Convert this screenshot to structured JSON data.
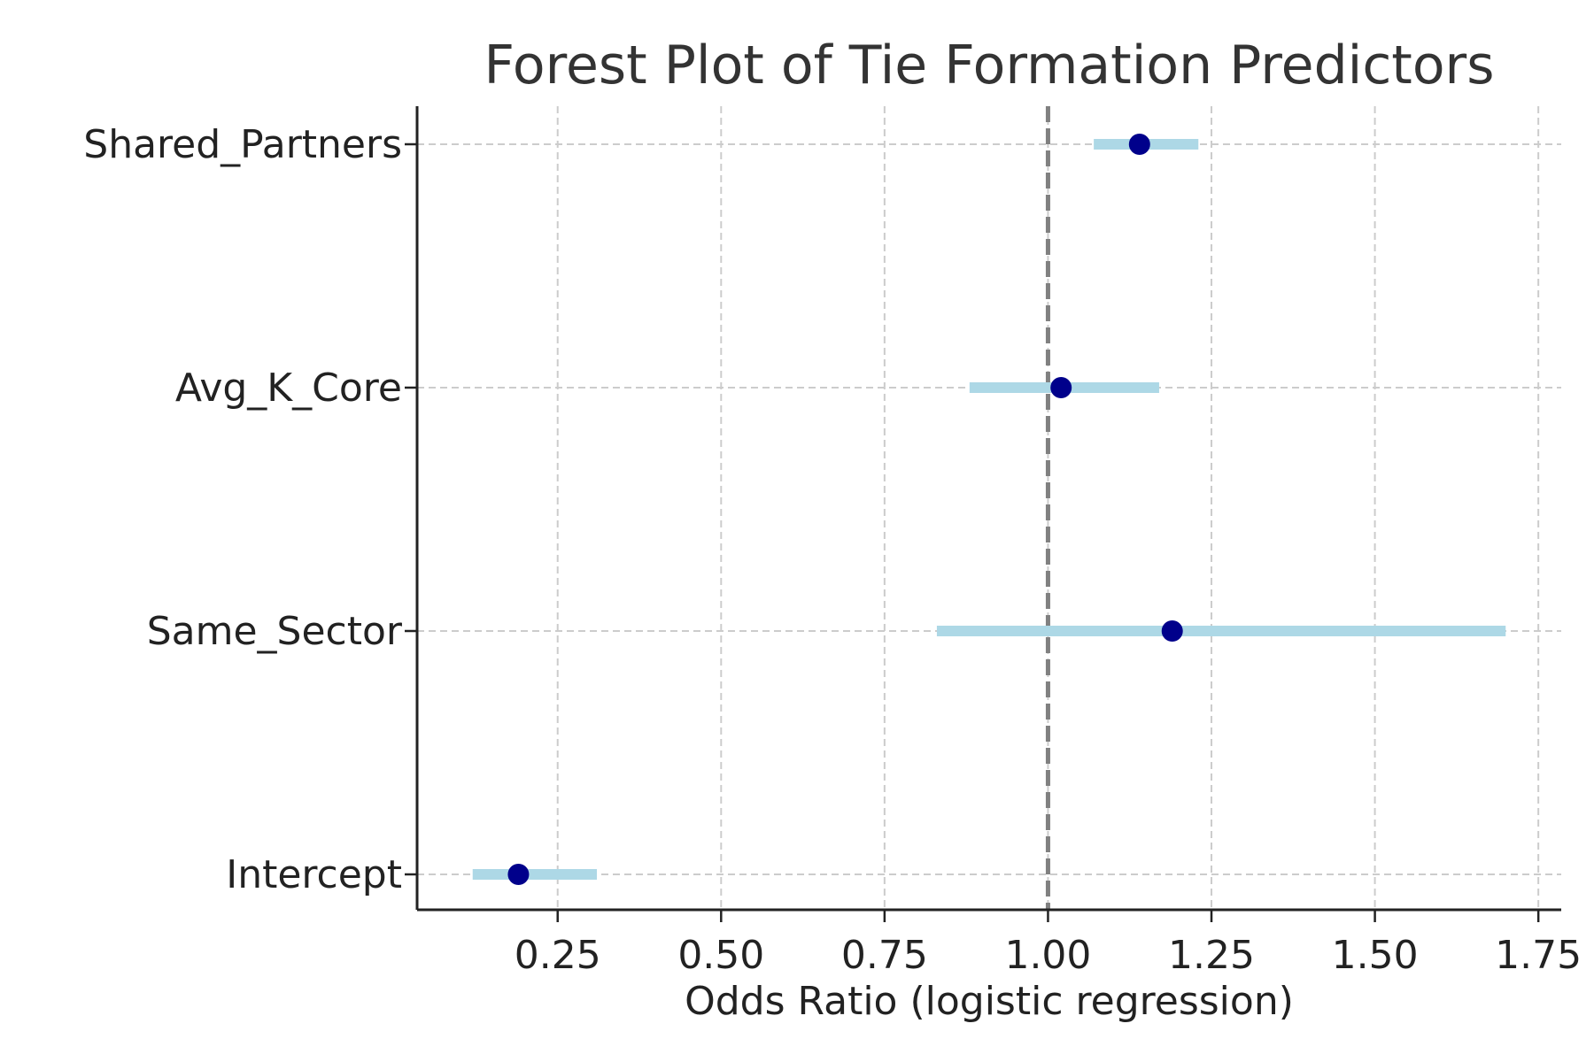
{
  "chart_data": {
    "type": "scatter",
    "subtype": "forest-plot",
    "title": "Forest Plot of Tie Formation Predictors",
    "xlabel": "Odds Ratio (logistic regression)",
    "ylabel": "",
    "xlim": [
      0.035,
      1.785
    ],
    "xticks": [
      0.25,
      0.5,
      0.75,
      1.0,
      1.25,
      1.5,
      1.75
    ],
    "xtick_labels": [
      "0.25",
      "0.50",
      "0.75",
      "1.00",
      "1.25",
      "1.50",
      "1.75"
    ],
    "reference_line": 1.0,
    "grid": true,
    "rows": [
      {
        "label": "Shared_Partners",
        "odds_ratio": 1.14,
        "ci_low": 1.07,
        "ci_high": 1.23
      },
      {
        "label": "Avg_K_Core",
        "odds_ratio": 1.02,
        "ci_low": 0.88,
        "ci_high": 1.17
      },
      {
        "label": "Same_Sector",
        "odds_ratio": 1.19,
        "ci_low": 0.83,
        "ci_high": 1.7
      },
      {
        "label": "Intercept",
        "odds_ratio": 0.19,
        "ci_low": 0.12,
        "ci_high": 0.31
      }
    ],
    "colors": {
      "point": "#00008b",
      "ci": "#add8e6",
      "reference": "#808080",
      "grid": "#cccccc",
      "axis": "#222222"
    }
  }
}
